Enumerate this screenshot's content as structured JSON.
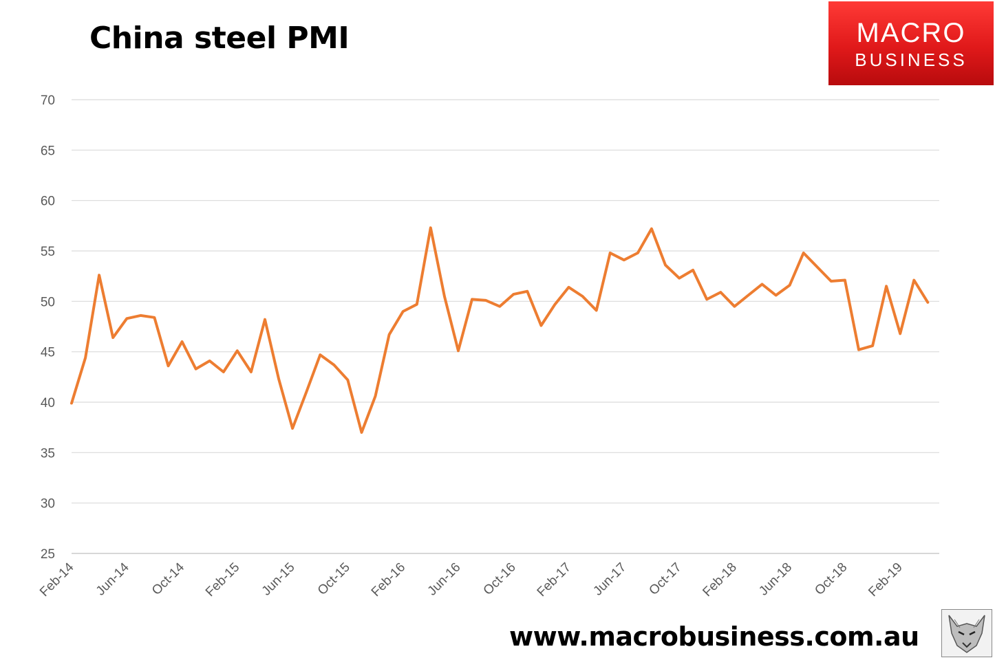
{
  "header": {
    "title": "China steel PMI"
  },
  "logo": {
    "line1": "MACRO",
    "line2": "BUSINESS"
  },
  "footer": {
    "url": "www.macrobusiness.com.au"
  },
  "colors": {
    "series": "#ed7d31",
    "grid": "#d9d9d9",
    "logo_red": "#e0191a"
  },
  "chart_data": {
    "type": "line",
    "title": "China steel PMI",
    "xlabel": "",
    "ylabel": "",
    "ylim": [
      25,
      70
    ],
    "yticks": [
      25,
      30,
      35,
      40,
      45,
      50,
      55,
      60,
      65,
      70
    ],
    "grid": true,
    "x_tick_labels": [
      "Feb-14",
      "Jun-14",
      "Oct-14",
      "Feb-15",
      "Jun-15",
      "Oct-15",
      "Feb-16",
      "Jun-16",
      "Oct-16",
      "Feb-17",
      "Jun-17",
      "Oct-17",
      "Feb-18",
      "Jun-18",
      "Oct-18",
      "Feb-19"
    ],
    "x_start": "Feb-14",
    "series": [
      {
        "values": [
          39.9,
          44.4,
          52.6,
          46.4,
          48.3,
          48.6,
          48.4,
          43.6,
          46.0,
          43.3,
          44.1,
          43.0,
          45.1,
          43.0,
          48.2,
          42.3,
          37.4,
          41.0,
          44.7,
          43.7,
          42.2,
          37.0,
          40.6,
          46.7,
          49.0,
          49.7,
          57.3,
          50.5,
          45.1,
          50.2,
          50.1,
          49.5,
          50.7,
          51.0,
          47.6,
          49.7,
          51.4,
          50.5,
          49.1,
          54.8,
          54.1,
          54.8,
          57.2,
          53.6,
          52.3,
          53.1,
          50.2,
          50.9,
          49.5,
          50.6,
          51.7,
          50.6,
          51.6,
          54.8,
          53.4,
          52.0,
          52.1,
          45.2,
          45.6,
          51.5,
          46.8,
          52.1,
          49.9
        ]
      }
    ]
  }
}
